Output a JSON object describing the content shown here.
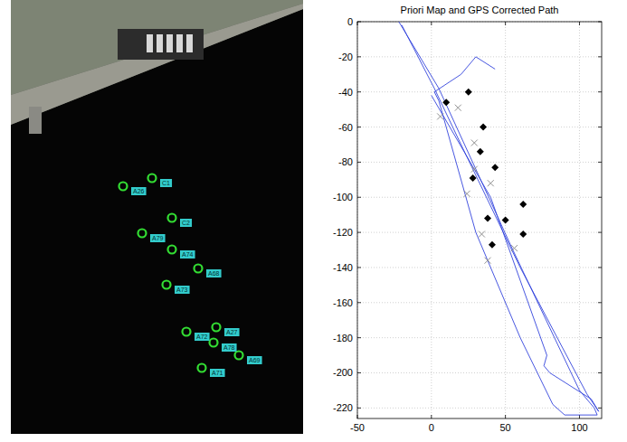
{
  "chart_data": [
    {
      "type": "scatter",
      "tick_labels": false,
      "marker": "circle",
      "color": "#33dd33",
      "xlim": [
        0,
        323
      ],
      "ylim": [
        480,
        0
      ],
      "x": [
        124,
        156,
        178,
        145,
        178,
        207,
        172,
        194,
        227,
        224,
        252,
        211
      ],
      "values": [
        206,
        197,
        241,
        258,
        276,
        297,
        315,
        367,
        362,
        379,
        393,
        407
      ],
      "labels": [
        "A26",
        "C1",
        "C2",
        "A79",
        "A74",
        "A68",
        "A73",
        "A72",
        "A27",
        "A78",
        "A69",
        "A71"
      ]
    },
    {
      "type": "line",
      "title": "Priori Map and GPS Corrected Path",
      "xlim": [
        -50,
        115
      ],
      "ylim": [
        -226,
        0
      ],
      "xticks": [
        -50,
        0,
        50,
        100
      ],
      "yticks": [
        0,
        -20,
        -40,
        -60,
        -80,
        -100,
        -120,
        -140,
        -160,
        -180,
        -200,
        -220
      ],
      "grid": true,
      "series": [
        {
          "type": "line",
          "color": "#3344dd",
          "x": [
            -22,
            5,
            55,
            100,
            110,
            112,
            90,
            82,
            60,
            30,
            5,
            2,
            20,
            30,
            43,
            null,
            0,
            40,
            78,
            76,
            80,
            108,
            113,
            105,
            60,
            20,
            2,
            -20
          ],
          "values": [
            0,
            -38,
            -130,
            -210,
            -220,
            -224,
            -224,
            -218,
            -180,
            -120,
            -45,
            -40,
            -30,
            -20,
            -27,
            null,
            -42,
            -100,
            -190,
            -196,
            -200,
            -215,
            -222,
            -212,
            -140,
            -70,
            -38,
            -2
          ]
        },
        {
          "type": "scatter",
          "marker": "diamond",
          "color": "#000000",
          "x": [
            10,
            25,
            35,
            33,
            43,
            28,
            62,
            38,
            50,
            41,
            62
          ],
          "values": [
            -46,
            -40,
            -60,
            -74,
            -83,
            -89,
            -104,
            -112,
            -113,
            -127,
            -121
          ]
        },
        {
          "type": "scatter",
          "marker": "x",
          "color": "#909090",
          "x": [
            6,
            18,
            29,
            29,
            24,
            40,
            34,
            38,
            56
          ],
          "values": [
            -54,
            -49,
            -69,
            -84,
            -98,
            -92,
            -121,
            -136,
            -129
          ]
        }
      ]
    }
  ]
}
